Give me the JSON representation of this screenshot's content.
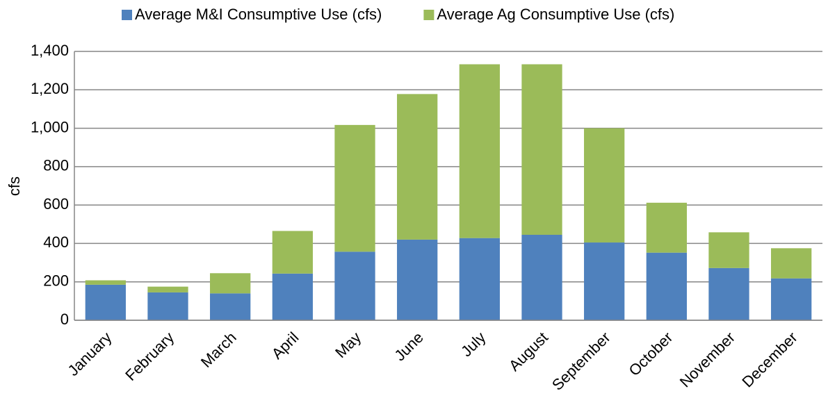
{
  "chart_data": {
    "type": "stacked_bar",
    "y_label": "cfs",
    "categories": [
      "January",
      "February",
      "March",
      "April",
      "May",
      "June",
      "July",
      "August",
      "September",
      "October",
      "November",
      "December"
    ],
    "series": [
      {
        "name": "Average M&I Consumptive Use (cfs)",
        "color": "#4f81bd",
        "values": [
          185,
          145,
          140,
          243,
          357,
          420,
          428,
          445,
          405,
          352,
          272,
          218
        ]
      },
      {
        "name": "Average Ag Consumptive Use (cfs)",
        "color": "#9bbb59",
        "values": [
          23,
          30,
          105,
          222,
          660,
          758,
          905,
          888,
          595,
          260,
          186,
          157
        ]
      }
    ],
    "ylim": [
      0,
      1400
    ],
    "yticks": [
      0,
      200,
      400,
      600,
      800,
      {
        "value": 1000,
        "label": "1,000"
      },
      {
        "value": 1200,
        "label": "1,200"
      },
      {
        "value": 1400,
        "label": "1,400"
      }
    ],
    "grid": true,
    "legend": "top"
  }
}
